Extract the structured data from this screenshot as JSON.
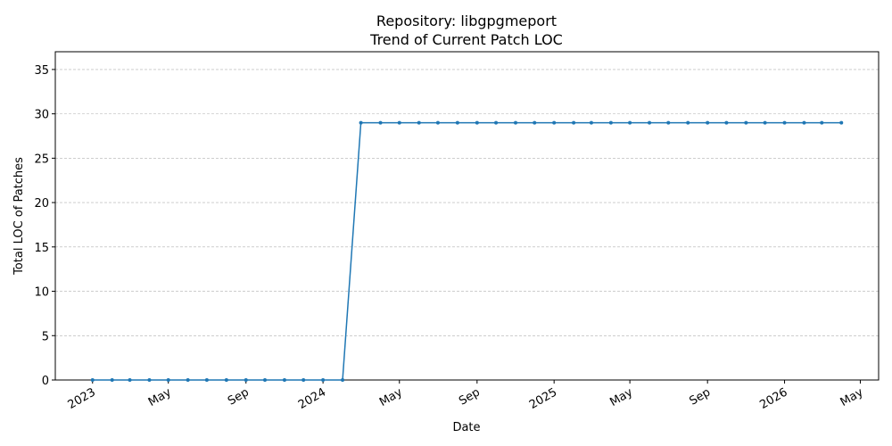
{
  "chart_data": {
    "type": "line",
    "title": "Repository: libgpgmeport",
    "subtitle": "Trend of Current Patch LOC",
    "x_label": "Date",
    "y_label": "Total LOC of Patches",
    "x": [
      "2023-01",
      "2023-02",
      "2023-03",
      "2023-04",
      "2023-05",
      "2023-06",
      "2023-07",
      "2023-08",
      "2023-09",
      "2023-10",
      "2023-11",
      "2023-12",
      "2024-01",
      "2024-02",
      "2024-03",
      "2024-04",
      "2024-05",
      "2024-06",
      "2024-07",
      "2024-08",
      "2024-09",
      "2024-10",
      "2024-11",
      "2024-12",
      "2025-01",
      "2025-02",
      "2025-03",
      "2025-04",
      "2025-05",
      "2025-06",
      "2025-07",
      "2025-08",
      "2025-09",
      "2025-10",
      "2025-11",
      "2025-12",
      "2026-01",
      "2026-02",
      "2026-03",
      "2026-04"
    ],
    "series": [
      {
        "color": "#1f77b4",
        "values": [
          0,
          0,
          0,
          0,
          0,
          0,
          0,
          0,
          0,
          0,
          0,
          0,
          0,
          0,
          29,
          29,
          29,
          29,
          29,
          29,
          29,
          29,
          29,
          29,
          29,
          29,
          29,
          29,
          29,
          29,
          29,
          29,
          29,
          29,
          29,
          29,
          29,
          29,
          29,
          29
        ]
      }
    ],
    "xlim": [
      "2022-11-03",
      "2026-05-30"
    ],
    "xticks": [
      {
        "value": "2023-01",
        "label": "2023"
      },
      {
        "value": "2023-05",
        "label": "May"
      },
      {
        "value": "2023-09",
        "label": "Sep"
      },
      {
        "value": "2024-01",
        "label": "2024"
      },
      {
        "value": "2024-05",
        "label": "May"
      },
      {
        "value": "2024-09",
        "label": "Sep"
      },
      {
        "value": "2025-01",
        "label": "2025"
      },
      {
        "value": "2025-05",
        "label": "May"
      },
      {
        "value": "2025-09",
        "label": "Sep"
      },
      {
        "value": "2026-01",
        "label": "2026"
      },
      {
        "value": "2026-05",
        "label": "May"
      }
    ],
    "ylim": [
      0,
      37
    ],
    "yticks": [
      0,
      5,
      10,
      15,
      20,
      25,
      30,
      35
    ],
    "grid": true
  }
}
